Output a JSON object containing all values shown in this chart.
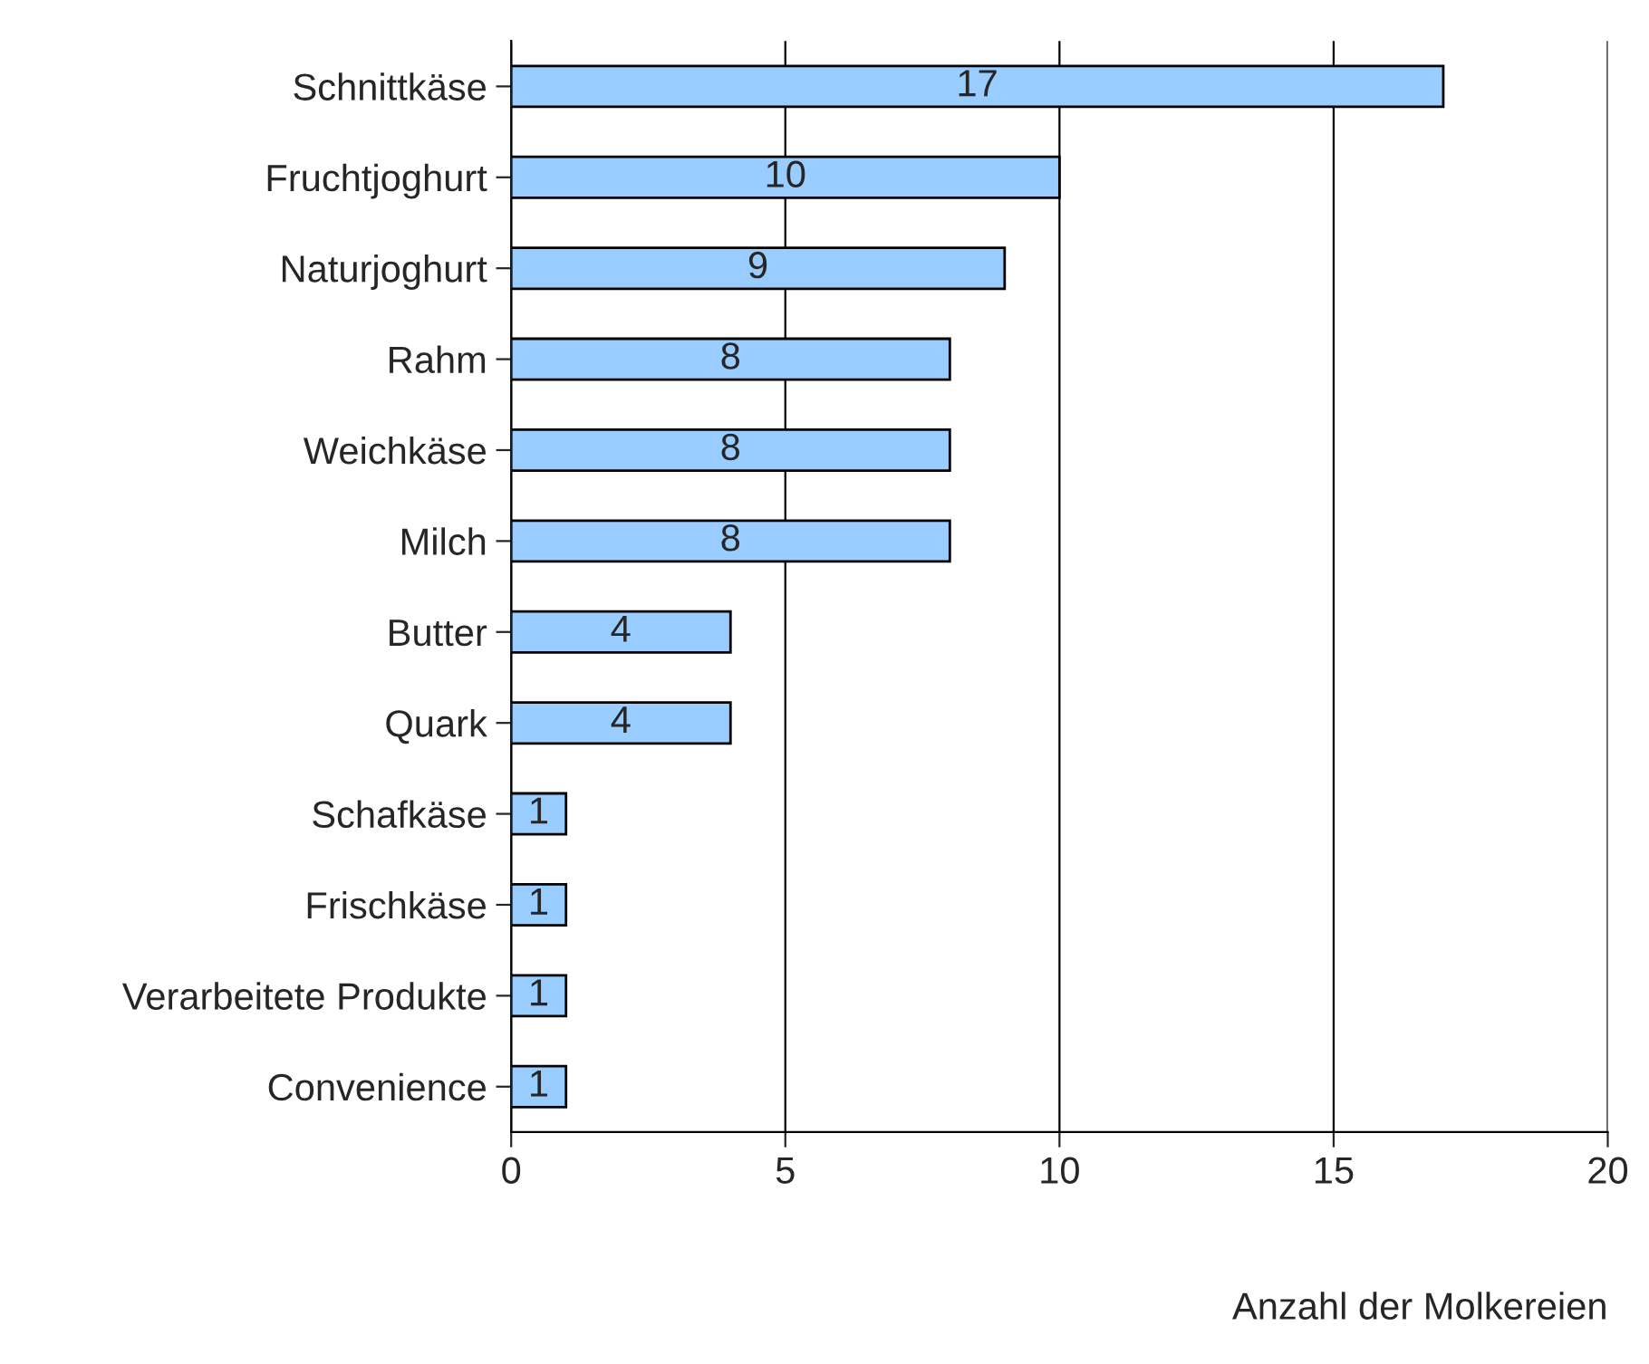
{
  "chart_data": {
    "type": "bar",
    "orientation": "horizontal",
    "xlabel": "Anzahl der Molkereien",
    "categories": [
      "Schnittkäse",
      "Fruchtjoghurt",
      "Naturjoghurt",
      "Rahm",
      "Weichkäse",
      "Milch",
      "Butter",
      "Quark",
      "Schafkäse",
      "Frischkäse",
      "Verarbeitete Produkte",
      "Convenience"
    ],
    "values": [
      17,
      10,
      9,
      8,
      8,
      8,
      4,
      4,
      1,
      1,
      1,
      1
    ],
    "color": "#99ccff",
    "xlim": [
      0,
      20
    ],
    "xticks": [
      0,
      5,
      10,
      15,
      20
    ],
    "grid": "x",
    "data_labels": true
  }
}
